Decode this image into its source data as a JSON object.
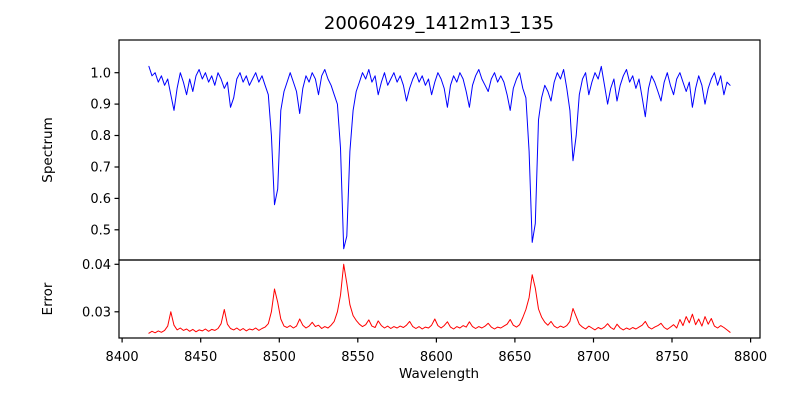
{
  "figure": {
    "title": "20060429_1412m13_135",
    "background": "#ffffff"
  },
  "chart_data": {
    "type": "line",
    "title": "20060429_1412m13_135",
    "xlabel": "Wavelength",
    "grid": false,
    "legend": null,
    "xlim": [
      8398,
      8806
    ],
    "x_ticks": [
      8400,
      8450,
      8500,
      8550,
      8600,
      8650,
      8700,
      8750,
      8800
    ],
    "x_tick_labels": [
      "8400",
      "8450",
      "8500",
      "8550",
      "8600",
      "8650",
      "8700",
      "8750",
      "8800"
    ],
    "x_start": 8417,
    "x_step": 2,
    "panels": [
      {
        "name": "spectrum",
        "ylabel": "Spectrum",
        "ylim": [
          0.404,
          1.104
        ],
        "y_ticks": [
          0.5,
          0.6,
          0.7,
          0.8,
          0.9,
          1.0
        ],
        "y_tick_labels": [
          "0.5",
          "0.6",
          "0.7",
          "0.8",
          "0.9",
          "1.0"
        ],
        "line_color": "#0000ff",
        "absorption_lines": [
          {
            "wavelength": 8498,
            "min_flux": 0.58
          },
          {
            "wavelength": 8542,
            "min_flux": 0.44
          },
          {
            "wavelength": 8662,
            "min_flux": 0.46
          },
          {
            "wavelength": 8687,
            "min_flux": 0.72
          }
        ],
        "values": [
          1.02,
          0.99,
          1.0,
          0.97,
          0.99,
          0.96,
          0.98,
          0.93,
          0.88,
          0.95,
          1.0,
          0.97,
          0.93,
          0.98,
          0.94,
          0.99,
          1.01,
          0.98,
          1.0,
          0.97,
          0.99,
          0.96,
          1.0,
          0.98,
          0.95,
          0.97,
          0.89,
          0.92,
          0.98,
          1.0,
          0.97,
          0.99,
          0.96,
          0.98,
          1.0,
          0.97,
          0.99,
          0.96,
          0.93,
          0.8,
          0.58,
          0.63,
          0.88,
          0.94,
          0.97,
          1.0,
          0.97,
          0.94,
          0.87,
          0.95,
          0.99,
          0.97,
          1.0,
          0.98,
          0.93,
          0.99,
          1.01,
          0.98,
          0.96,
          0.93,
          0.9,
          0.76,
          0.44,
          0.48,
          0.75,
          0.88,
          0.94,
          0.97,
          1.0,
          0.98,
          1.01,
          0.97,
          0.99,
          0.93,
          0.97,
          1.0,
          0.96,
          0.98,
          1.0,
          0.97,
          0.99,
          0.96,
          0.91,
          0.95,
          0.98,
          1.0,
          0.97,
          0.99,
          0.96,
          0.98,
          0.93,
          0.97,
          1.0,
          0.98,
          0.95,
          0.89,
          0.96,
          0.99,
          0.97,
          1.0,
          0.98,
          0.94,
          0.89,
          0.96,
          0.99,
          1.01,
          0.98,
          0.96,
          0.94,
          0.98,
          1.0,
          0.97,
          0.99,
          0.97,
          0.93,
          0.88,
          0.95,
          0.98,
          1.0,
          0.95,
          0.92,
          0.75,
          0.46,
          0.52,
          0.85,
          0.92,
          0.96,
          0.94,
          0.91,
          0.97,
          1.0,
          0.98,
          1.01,
          0.95,
          0.88,
          0.72,
          0.8,
          0.93,
          0.98,
          1.0,
          0.93,
          0.97,
          1.0,
          0.98,
          1.02,
          0.96,
          0.9,
          0.95,
          0.98,
          0.91,
          0.96,
          0.99,
          1.01,
          0.97,
          0.99,
          0.95,
          0.98,
          0.92,
          0.86,
          0.95,
          0.99,
          0.97,
          0.94,
          0.91,
          0.97,
          1.0,
          0.96,
          0.93,
          0.98,
          1.0,
          0.97,
          0.94,
          0.97,
          0.89,
          0.95,
          0.99,
          0.96,
          0.9,
          0.95,
          0.98,
          1.0,
          0.96,
          0.99,
          0.93,
          0.97,
          0.96
        ]
      },
      {
        "name": "error",
        "ylabel": "Error",
        "ylim": [
          0.0245,
          0.0409
        ],
        "y_ticks": [
          0.03,
          0.04
        ],
        "y_tick_labels": [
          "0.03",
          "0.04"
        ],
        "line_color": "#ff0000",
        "peaks": [
          {
            "wavelength": 8431,
            "value": 0.03
          },
          {
            "wavelength": 8465,
            "value": 0.0305
          },
          {
            "wavelength": 8497,
            "value": 0.0348
          },
          {
            "wavelength": 8541,
            "value": 0.04
          },
          {
            "wavelength": 8661,
            "value": 0.0378
          },
          {
            "wavelength": 8687,
            "value": 0.0307
          }
        ],
        "values": [
          0.0255,
          0.0259,
          0.0256,
          0.026,
          0.0257,
          0.0261,
          0.027,
          0.03,
          0.0272,
          0.0262,
          0.0266,
          0.0261,
          0.0264,
          0.0259,
          0.0263,
          0.0258,
          0.0262,
          0.026,
          0.0264,
          0.0259,
          0.0263,
          0.0261,
          0.0265,
          0.0275,
          0.0305,
          0.0274,
          0.0265,
          0.0262,
          0.0266,
          0.0261,
          0.0265,
          0.026,
          0.0264,
          0.0262,
          0.0266,
          0.0261,
          0.0265,
          0.0268,
          0.0275,
          0.03,
          0.0348,
          0.032,
          0.0285,
          0.027,
          0.0267,
          0.0271,
          0.0266,
          0.027,
          0.0285,
          0.0272,
          0.0266,
          0.027,
          0.0278,
          0.0269,
          0.0272,
          0.0265,
          0.0269,
          0.0266,
          0.0272,
          0.028,
          0.03,
          0.0335,
          0.04,
          0.036,
          0.0315,
          0.0292,
          0.0282,
          0.0274,
          0.0269,
          0.0273,
          0.0283,
          0.027,
          0.0267,
          0.0281,
          0.0271,
          0.0266,
          0.027,
          0.0265,
          0.0269,
          0.0266,
          0.027,
          0.0267,
          0.0272,
          0.028,
          0.0269,
          0.0265,
          0.0269,
          0.0264,
          0.0268,
          0.0266,
          0.0272,
          0.0285,
          0.0271,
          0.0266,
          0.0271,
          0.0279,
          0.0268,
          0.0264,
          0.0269,
          0.0266,
          0.0271,
          0.0268,
          0.0279,
          0.0269,
          0.0265,
          0.0269,
          0.0266,
          0.027,
          0.0276,
          0.0268,
          0.0264,
          0.0268,
          0.0266,
          0.027,
          0.0274,
          0.0284,
          0.0272,
          0.0268,
          0.0273,
          0.0288,
          0.0305,
          0.033,
          0.0378,
          0.035,
          0.0306,
          0.0289,
          0.0278,
          0.0272,
          0.028,
          0.027,
          0.0266,
          0.027,
          0.0267,
          0.0271,
          0.028,
          0.0307,
          0.029,
          0.0274,
          0.0268,
          0.0264,
          0.027,
          0.0266,
          0.0262,
          0.0267,
          0.0264,
          0.0268,
          0.0275,
          0.0267,
          0.0263,
          0.0274,
          0.0266,
          0.0262,
          0.0266,
          0.0263,
          0.0267,
          0.0264,
          0.0268,
          0.0272,
          0.028,
          0.0268,
          0.0264,
          0.0268,
          0.0271,
          0.0276,
          0.0267,
          0.0263,
          0.0268,
          0.0273,
          0.0266,
          0.0284,
          0.0271,
          0.029,
          0.0277,
          0.0295,
          0.0273,
          0.0285,
          0.027,
          0.029,
          0.0274,
          0.0286,
          0.027,
          0.0266,
          0.0271,
          0.0267,
          0.0262,
          0.0257
        ]
      }
    ]
  }
}
